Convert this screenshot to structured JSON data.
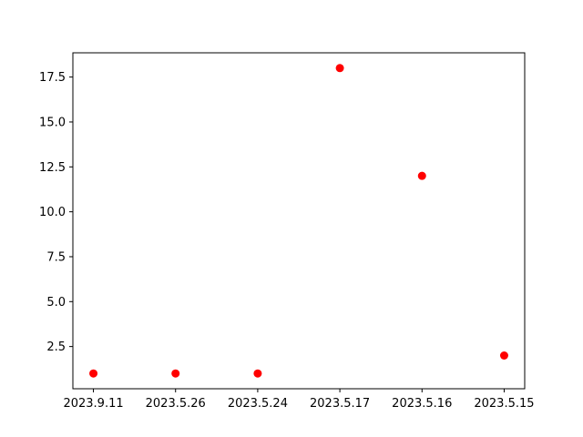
{
  "chart_data": {
    "type": "scatter",
    "title": "",
    "xlabel": "",
    "ylabel": "",
    "categories": [
      "2023.9.11",
      "2023.5.26",
      "2023.5.24",
      "2023.5.17",
      "2023.5.16",
      "2023.5.15"
    ],
    "values": [
      1,
      1,
      1,
      18,
      12,
      2
    ],
    "ylim": [
      0.15,
      18.85
    ],
    "yticks": [
      "2.5",
      "5.0",
      "7.5",
      "10.0",
      "12.5",
      "15.0",
      "17.5"
    ],
    "grid": false,
    "legend": "none",
    "marker_color": "#ff0000"
  }
}
